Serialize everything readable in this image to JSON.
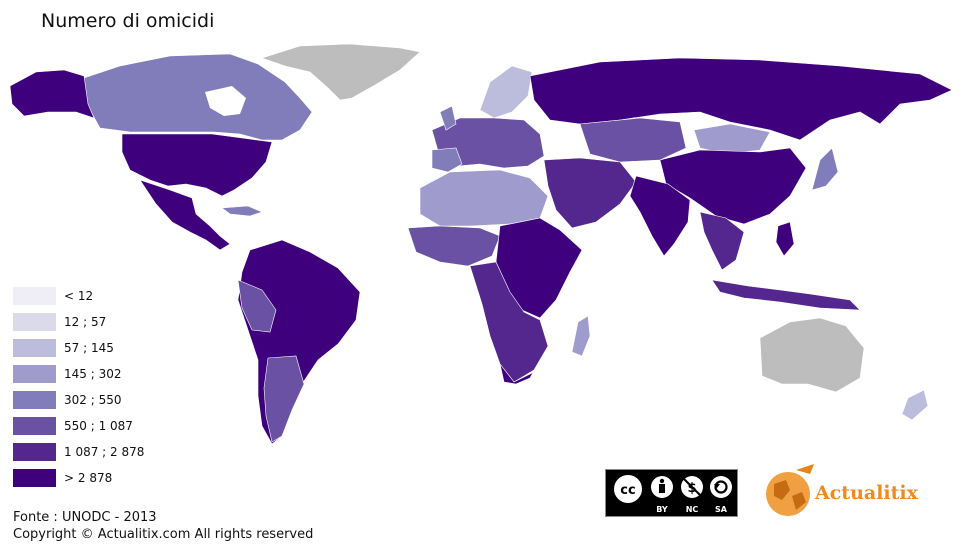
{
  "title": "Numero di omicidi",
  "legend": [
    {
      "label": "< 12",
      "color": "#efedf5"
    },
    {
      "label": "12 ; 57",
      "color": "#dadaeb"
    },
    {
      "label": "57 ; 145",
      "color": "#bcbddc"
    },
    {
      "label": "145 ; 302",
      "color": "#a09bcd"
    },
    {
      "label": "302 ; 550",
      "color": "#807dba"
    },
    {
      "label": "550 ; 1 087",
      "color": "#6a51a3"
    },
    {
      "label": "1 087 ; 2 878",
      "color": "#54278f"
    },
    {
      "label": "> 2 878",
      "color": "#3f007d"
    }
  ],
  "no_data_color": "#bdbdbd",
  "license": {
    "icons": [
      "cc-icon",
      "by-icon",
      "nc-icon",
      "sa-icon"
    ],
    "labels": [
      "BY",
      "NC",
      "SA"
    ]
  },
  "brand": {
    "name": "Actualitix"
  },
  "source": "Fonte : UNODC - 2013",
  "copyright": "Copyright © Actualitix.com All rights reserved"
}
